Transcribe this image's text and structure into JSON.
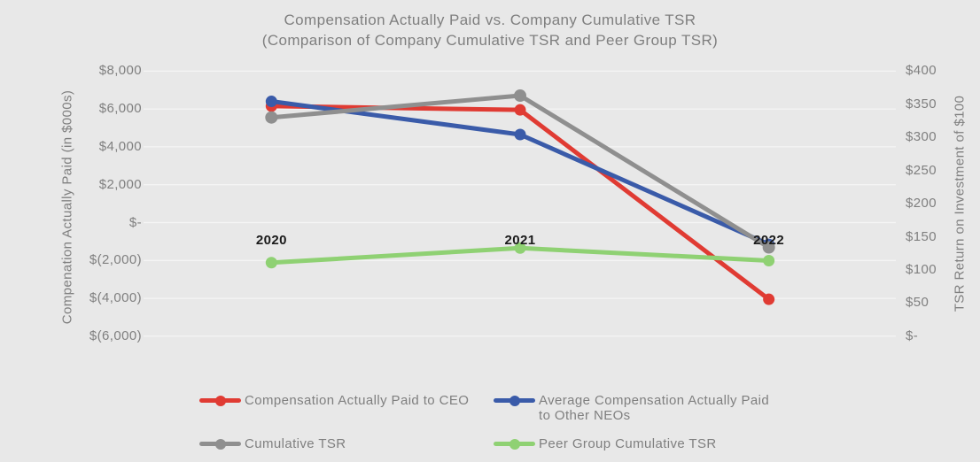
{
  "page": {
    "background": "#e8e8e8",
    "gridline_color": "#f5f5f5",
    "text_color": "#7f7f7f",
    "category_label_color": "#1a1a1a"
  },
  "title": {
    "line1": "Compensation Actually Paid vs. Company Cumulative TSR",
    "line2": "(Comparison of Company Cumulative TSR and Peer Group TSR)"
  },
  "left_axis": {
    "title": "Compenation Actually Paid (in $000s)",
    "tick_labels": [
      "$8,000",
      "$6,000",
      "$4,000",
      "$2,000",
      "$-",
      "$(2,000)",
      "$(4,000)",
      "$(6,000)"
    ],
    "tick_values": [
      8000,
      6000,
      4000,
      2000,
      0,
      -2000,
      -4000,
      -6000
    ]
  },
  "right_axis": {
    "title": "TSR Return on Investment of $100",
    "tick_labels": [
      "$400",
      "$350",
      "$300",
      "$250",
      "$200",
      "$150",
      "$100",
      "$50",
      "$-"
    ],
    "tick_values": [
      400,
      350,
      300,
      250,
      200,
      150,
      100,
      50,
      0
    ]
  },
  "chart_data": {
    "type": "line",
    "categories": [
      "2020",
      "2021",
      "2022"
    ],
    "left_ylim": [
      -6000,
      8000
    ],
    "right_ylim": [
      0,
      400
    ],
    "grid": true,
    "legend_position": "bottom",
    "series": [
      {
        "id": "ceo-cap",
        "name": "Compensation Actually Paid to CEO",
        "axis": "left",
        "color": "#e03b33",
        "marker_r": 6.5,
        "values": [
          6150,
          5950,
          -4050
        ]
      },
      {
        "id": "neo-cap",
        "name": "Average Compensation Actually Paid to Other NEOs",
        "axis": "left",
        "color": "#3a5ba9",
        "marker_r": 6.5,
        "values": [
          6400,
          4650,
          -1150
        ]
      },
      {
        "id": "cumulative-tsr",
        "name": "Cumulative TSR",
        "axis": "right",
        "color": "#8f8f8f",
        "marker_r": 7,
        "values": [
          330,
          363,
          134
        ]
      },
      {
        "id": "peer-tsr",
        "name": "Peer Group Cumulative TSR",
        "axis": "right",
        "color": "#8fd173",
        "marker_r": 6.5,
        "values": [
          111,
          133,
          114
        ]
      }
    ]
  },
  "legend": {
    "items": [
      {
        "series_id": "ceo-cap",
        "color": "#e03b33",
        "lines": [
          "Compensation Actually Paid to CEO"
        ]
      },
      {
        "series_id": "neo-cap",
        "color": "#3a5ba9",
        "lines": [
          "Average Compensation Actually Paid",
          "to Other NEOs"
        ]
      },
      {
        "series_id": "cumulative-tsr",
        "color": "#8f8f8f",
        "lines": [
          "Cumulative TSR"
        ]
      },
      {
        "series_id": "peer-tsr",
        "color": "#8fd173",
        "lines": [
          "Peer Group Cumulative TSR"
        ]
      }
    ]
  }
}
